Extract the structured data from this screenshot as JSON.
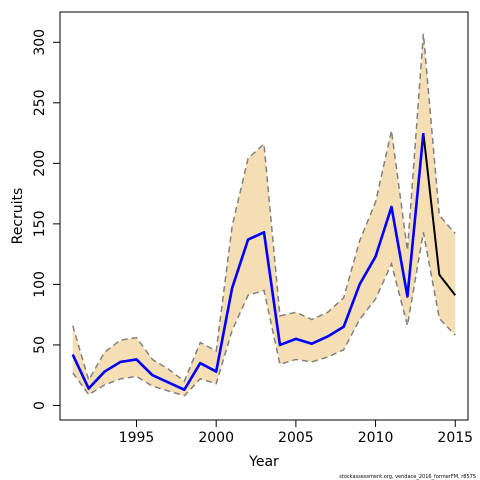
{
  "chart_data": {
    "type": "line",
    "xlabel": "Year",
    "ylabel": "Recruits",
    "xlim": [
      1990.2,
      2015.8
    ],
    "ylim": [
      -12,
      325
    ],
    "x_ticks": [
      1995,
      2000,
      2005,
      2010,
      2015
    ],
    "y_ticks": [
      0,
      50,
      100,
      150,
      200,
      250,
      300
    ],
    "x": [
      1991,
      1992,
      1993,
      1994,
      1995,
      1996,
      1997,
      1998,
      1999,
      2000,
      2001,
      2002,
      2003,
      2004,
      2005,
      2006,
      2007,
      2008,
      2009,
      2010,
      2011,
      2012,
      2013,
      2014,
      2015
    ],
    "series": [
      {
        "values": [
          42,
          14,
          28,
          36,
          38,
          25,
          19,
          13,
          35,
          28,
          97,
          137,
          143,
          50,
          55,
          51,
          57,
          65,
          100,
          123,
          164,
          90,
          225,
          108,
          91
        ]
      }
    ],
    "blue_estimate_years": [
      1991,
      2013
    ],
    "upper_bound": [
      66,
      21,
      44,
      54,
      56,
      38,
      30,
      20,
      52,
      45,
      148,
      204,
      216,
      74,
      77,
      71,
      77,
      89,
      136,
      168,
      227,
      128,
      307,
      157,
      142
    ],
    "lower_bound": [
      27,
      9,
      17,
      22,
      24,
      16,
      12,
      8,
      22,
      18,
      62,
      91,
      95,
      34,
      38,
      36,
      40,
      46,
      71,
      88,
      117,
      66,
      143,
      72,
      58
    ],
    "colors": {
      "interval_fill": "#f5deb3",
      "interval_border": "#808080",
      "estimate_line": "#0000ff",
      "projection_line": "#000000"
    },
    "grid": false,
    "credit": "stockassessment.org, vendace_2016_formerFM, r8575"
  }
}
